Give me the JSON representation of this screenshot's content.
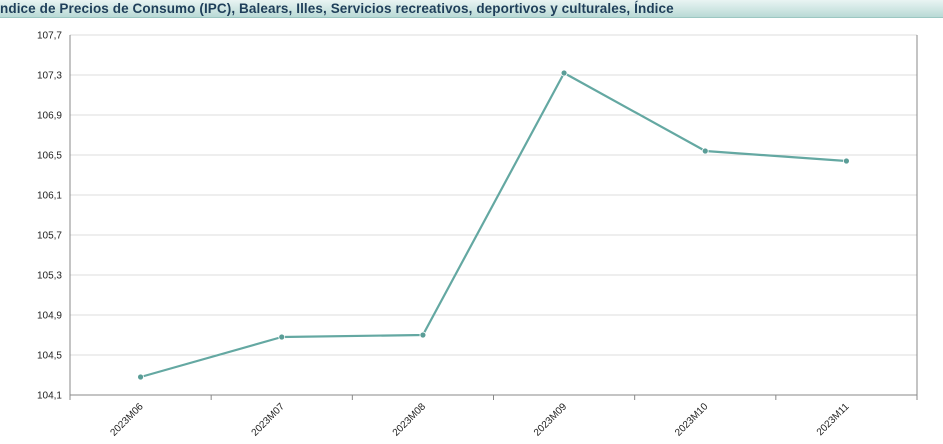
{
  "title": "ndice de Precios de Consumo (IPC), Balears, Illes, Servicios recreativos, deportivos y culturales, Índice",
  "colors": {
    "line": "#64a8a2",
    "point": "#5a9d97",
    "grid": "#dddddd",
    "axis": "#888888",
    "header_bg": "#cfe6e3",
    "header_text": "#1f3f5a"
  },
  "chart_data": {
    "type": "line",
    "title": "ndice de Precios de Consumo (IPC), Balears, Illes, Servicios recreativos, deportivos y culturales, Índice",
    "xlabel": "",
    "ylabel": "",
    "categories": [
      "2023M06",
      "2023M07",
      "2023M08",
      "2023M09",
      "2023M10",
      "2023M11"
    ],
    "series": [
      {
        "values": [
          104.28,
          104.68,
          104.7,
          107.32,
          106.54,
          106.44
        ]
      }
    ],
    "y_ticks": [
      "104,1",
      "104,5",
      "104,9",
      "105,3",
      "105,7",
      "106,1",
      "106,5",
      "106,9",
      "107,3",
      "107,7"
    ],
    "y_tick_values": [
      104.1,
      104.5,
      104.9,
      105.3,
      105.7,
      106.1,
      106.5,
      106.9,
      107.3,
      107.7
    ],
    "ylim": [
      104.1,
      107.7
    ],
    "grid": true,
    "legend": "none"
  }
}
